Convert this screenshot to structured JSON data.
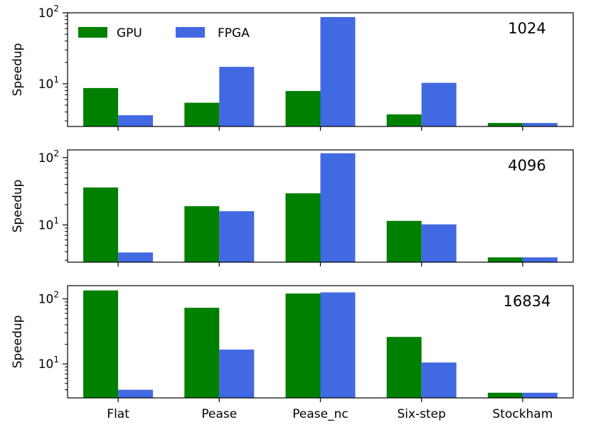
{
  "chart_data": {
    "type": "bar",
    "yscale": "log",
    "ylabel": "Speedup",
    "categories": [
      "Flat",
      "Pease",
      "Pease_nc",
      "Six-step",
      "Stockham"
    ],
    "legend": {
      "position": "top-left",
      "entries": [
        {
          "name": "GPU",
          "color": "#008000"
        },
        {
          "name": "FPGA",
          "color": "#4169e1"
        }
      ]
    },
    "y_tick_labels": [
      {
        "base": "10",
        "exp": "1",
        "value": 10
      },
      {
        "base": "10",
        "exp": "2",
        "value": 100
      }
    ],
    "panels": [
      {
        "label": "1024",
        "ylim": [
          2.5,
          100
        ],
        "series": [
          {
            "name": "GPU",
            "values": [
              8.7,
              5.4,
              7.9,
              3.7,
              2.8
            ]
          },
          {
            "name": "FPGA",
            "values": [
              3.6,
              17.3,
              87,
              10.3,
              2.8
            ]
          }
        ]
      },
      {
        "label": "4096",
        "ylim": [
          2.8,
          130
        ],
        "series": [
          {
            "name": "GPU",
            "values": [
              36,
              19,
              29.5,
              11.5,
              3.3
            ]
          },
          {
            "name": "FPGA",
            "values": [
              3.9,
              16,
              116,
              10.2,
              3.3
            ]
          }
        ]
      },
      {
        "label": "16834",
        "ylim": [
          3.0,
          160
        ],
        "series": [
          {
            "name": "GPU",
            "values": [
              135,
              73,
              121,
              26,
              3.6
            ]
          },
          {
            "name": "FPGA",
            "values": [
              4.0,
              16.6,
              126,
              10.5,
              3.6
            ]
          }
        ]
      }
    ]
  }
}
